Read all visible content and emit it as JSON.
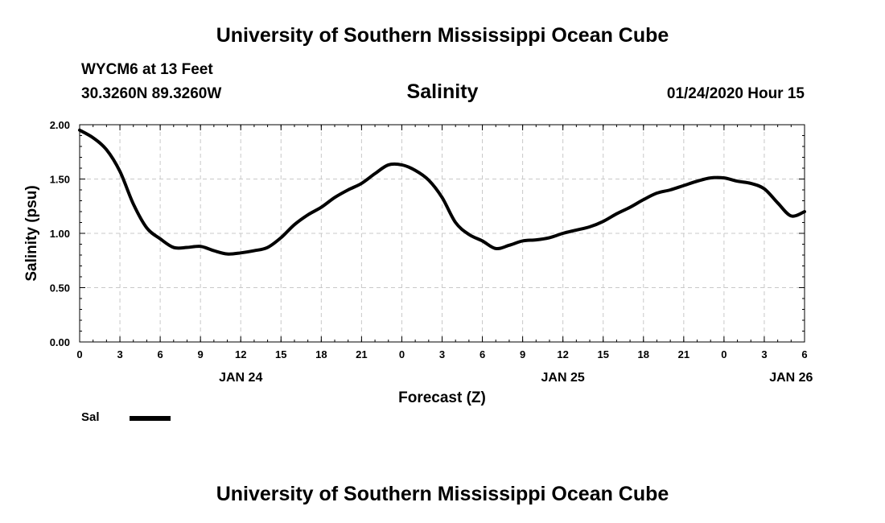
{
  "page": {
    "title_top": "University of Southern Mississippi Ocean Cube",
    "title_bottom": "University of Southern Mississippi Ocean Cube",
    "station": "WYCM6 at 13 Feet",
    "location": "30.3260N 89.3260W",
    "datetime": "01/24/2020 Hour 15"
  },
  "chart_data": {
    "type": "line",
    "title": "Salinity",
    "xlabel": "Forecast (Z)",
    "ylabel": "Salinity (psu)",
    "ylim": [
      0,
      2
    ],
    "xlim": [
      0,
      54
    ],
    "yticks": [
      0,
      0.5,
      1.0,
      1.5,
      2.0
    ],
    "ytick_labels": [
      "0.00",
      "0.50",
      "1.00",
      "1.50",
      "2.00"
    ],
    "xticks": [
      0,
      3,
      6,
      9,
      12,
      15,
      18,
      21,
      24,
      27,
      30,
      33,
      36,
      39,
      42,
      45,
      48,
      51,
      54
    ],
    "xtick_labels": [
      "0",
      "3",
      "6",
      "9",
      "12",
      "15",
      "18",
      "21",
      "0",
      "3",
      "6",
      "9",
      "12",
      "15",
      "18",
      "21",
      "0",
      "3",
      "6"
    ],
    "date_labels": [
      {
        "x": 12,
        "label": "JAN 24"
      },
      {
        "x": 36,
        "label": "JAN 25"
      },
      {
        "x": 53,
        "label": "JAN 26"
      }
    ],
    "grid": true,
    "legend": "bottom-left",
    "series": [
      {
        "name": "Sal",
        "color": "#000000",
        "x": [
          0,
          1,
          2,
          3,
          4,
          5,
          6,
          7,
          8,
          9,
          10,
          11,
          12,
          13,
          14,
          15,
          16,
          17,
          18,
          19,
          20,
          21,
          22,
          23,
          24,
          25,
          26,
          27,
          28,
          29,
          30,
          31,
          32,
          33,
          34,
          35,
          36,
          37,
          38,
          39,
          40,
          41,
          42,
          43,
          44,
          45,
          46,
          47,
          48,
          49,
          50,
          51,
          52,
          53,
          54
        ],
        "values": [
          1.95,
          1.88,
          1.77,
          1.57,
          1.27,
          1.05,
          0.95,
          0.87,
          0.87,
          0.88,
          0.84,
          0.81,
          0.82,
          0.84,
          0.87,
          0.96,
          1.08,
          1.17,
          1.24,
          1.33,
          1.4,
          1.46,
          1.55,
          1.63,
          1.63,
          1.58,
          1.49,
          1.33,
          1.1,
          0.99,
          0.93,
          0.86,
          0.89,
          0.93,
          0.94,
          0.96,
          1.0,
          1.03,
          1.06,
          1.11,
          1.18,
          1.24,
          1.31,
          1.37,
          1.4,
          1.44,
          1.48,
          1.51,
          1.51,
          1.48,
          1.46,
          1.41,
          1.28,
          1.16,
          1.2
        ]
      }
    ]
  }
}
